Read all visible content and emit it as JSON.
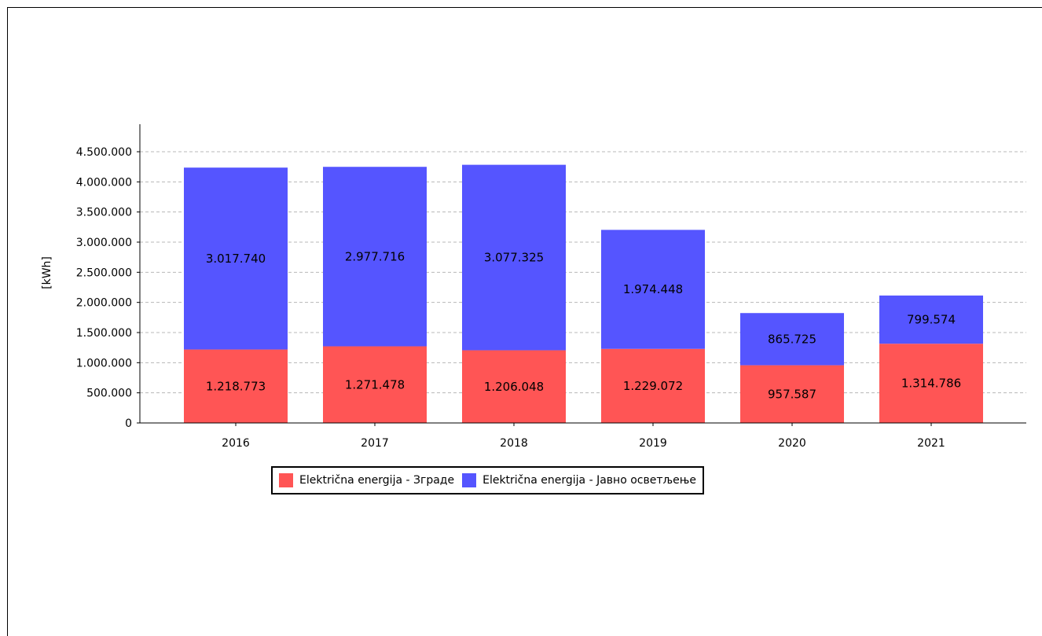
{
  "chart_data": {
    "type": "bar",
    "stacked": true,
    "categories": [
      "2016",
      "2017",
      "2018",
      "2019",
      "2020",
      "2021"
    ],
    "series": [
      {
        "name": "Električna energija - Зграде",
        "color": "#ff5555",
        "values": [
          1218773,
          1271478,
          1206048,
          1229072,
          957587,
          1314786
        ],
        "labels": [
          "1.218.773",
          "1.271.478",
          "1.206.048",
          "1.229.072",
          "957.587",
          "1.314.786"
        ]
      },
      {
        "name": "Električna energija - Јавно осветљење",
        "color": "#5555ff",
        "values": [
          3017740,
          2977716,
          3077325,
          1974448,
          865725,
          799574
        ],
        "labels": [
          "3.017.740",
          "2.977.716",
          "3.077.325",
          "1.974.448",
          "865.725",
          "799.574"
        ]
      }
    ],
    "ylabel": "[kWh]",
    "ylim": [
      0,
      4500000
    ],
    "yticks": [
      0,
      500000,
      1000000,
      1500000,
      2000000,
      2500000,
      3000000,
      3500000,
      4000000,
      4500000
    ],
    "ytick_labels": [
      "0",
      "500.000",
      "1.000.000",
      "1.500.000",
      "2.000.000",
      "2.500.000",
      "3.000.000",
      "3.500.000",
      "4.000.000",
      "4.500.000"
    ],
    "grid": true,
    "legend_position": "bottom"
  }
}
